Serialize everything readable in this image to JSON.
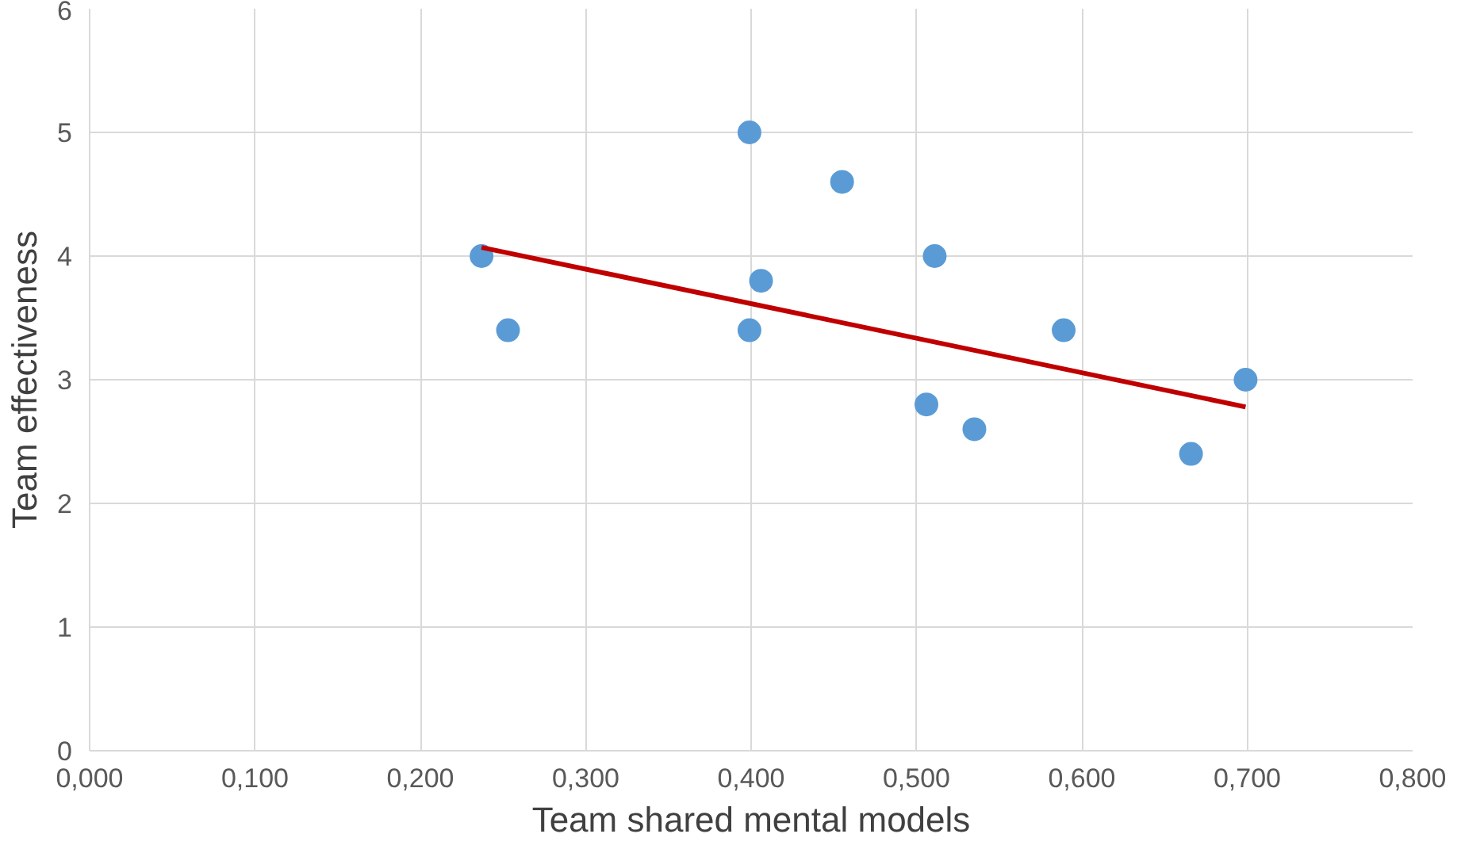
{
  "chart_data": {
    "type": "scatter",
    "xlabel": "Team shared mental models",
    "ylabel": "Team effectiveness",
    "xlim": [
      0,
      0.8
    ],
    "ylim": [
      0,
      6
    ],
    "xticks": [
      {
        "value": 0,
        "label": "0,000"
      },
      {
        "value": 0.1,
        "label": "0,100"
      },
      {
        "value": 0.2,
        "label": "0,200"
      },
      {
        "value": 0.3,
        "label": "0,300"
      },
      {
        "value": 0.4,
        "label": "0,400"
      },
      {
        "value": 0.5,
        "label": "0,500"
      },
      {
        "value": 0.6,
        "label": "0,600"
      },
      {
        "value": 0.7,
        "label": "0,700"
      },
      {
        "value": 0.8,
        "label": "0,800"
      }
    ],
    "yticks": [
      0,
      1,
      2,
      3,
      4,
      5,
      6
    ],
    "grid": true,
    "series": [
      {
        "marker": "circle",
        "color": "#5b9bd5",
        "x": [
          0.237,
          0.253,
          0.399,
          0.399,
          0.406,
          0.455,
          0.511,
          0.506,
          0.535,
          0.589,
          0.666,
          0.699
        ],
        "values": [
          4.0,
          3.4,
          5.0,
          3.4,
          3.8,
          4.6,
          4.0,
          2.8,
          2.6,
          3.4,
          2.4,
          3.0
        ]
      },
      {
        "type": "line",
        "color": "#c00000",
        "x": [
          0.237,
          0.699
        ],
        "values": [
          4.07,
          2.78
        ],
        "line_style": "solid"
      }
    ]
  }
}
